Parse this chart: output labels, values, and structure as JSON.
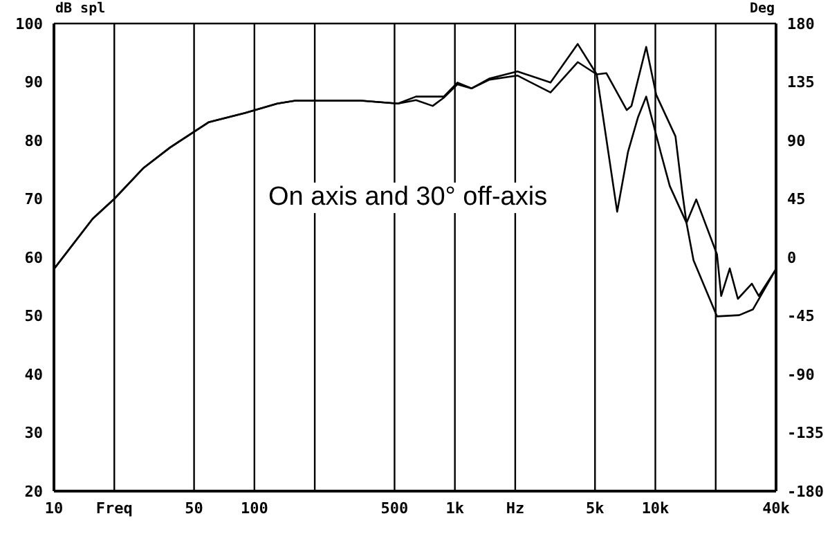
{
  "chart_data": {
    "type": "line",
    "ylabel": "dB spl",
    "y2label": "Deg",
    "annotations": [
      "On axis and 30° off-axis"
    ],
    "log": "x",
    "grid": true,
    "marker": "none",
    "line_style": "solid",
    "xlim": [
      10,
      40000
    ],
    "xticks": [
      10,
      {
        "value": 20,
        "label": "Freq"
      },
      50,
      100,
      {
        "value": 200,
        "label": null
      },
      500,
      {
        "value": 1000,
        "label": "1k"
      },
      {
        "value": 2000,
        "label": "Hz"
      },
      {
        "value": 5000,
        "label": "5k"
      },
      {
        "value": 10000,
        "label": "10k"
      },
      {
        "value": 20000,
        "label": null
      },
      {
        "value": 40000,
        "label": "40k"
      }
    ],
    "ylim": [
      20,
      100
    ],
    "yticks": [
      20,
      30,
      40,
      50,
      60,
      70,
      80,
      90,
      100
    ],
    "y2lim": [
      -180,
      180
    ],
    "y2ticks": [
      -180,
      -135,
      -90,
      -45,
      0,
      45,
      90,
      135,
      180
    ],
    "series": [
      {
        "color": "#000000",
        "x": [
          10,
          15.6,
          20,
          28,
          38,
          59,
          90,
          130,
          160,
          340,
          520,
          640,
          775,
          880,
          1030,
          1210,
          1490,
          2050,
          3000,
          4100,
          5100,
          6450,
          7300,
          8200,
          9000,
          10700,
          11800,
          14300,
          15500,
          20300,
          26200,
          30700,
          40000
        ],
        "values": [
          58,
          66.6,
          70,
          75.3,
          78.8,
          83.1,
          84.7,
          86.3,
          86.8,
          86.8,
          86.3,
          86.9,
          85.9,
          87.3,
          89.6,
          88.9,
          90.4,
          91.1,
          88.2,
          93.4,
          91.3,
          67.8,
          78,
          84,
          87.5,
          77.6,
          72.2,
          65.9,
          59.5,
          49.9,
          50.1,
          51.1,
          58
        ]
      },
      {
        "color": "#000000",
        "x": [
          10,
          15.6,
          20,
          28,
          38,
          59,
          90,
          130,
          160,
          340,
          520,
          640,
          775,
          880,
          1030,
          1210,
          1490,
          2050,
          3000,
          4100,
          5100,
          5700,
          7200,
          7600,
          9000,
          10100,
          12600,
          13600,
          14300,
          16000,
          20300,
          21300,
          23500,
          25800,
          30300,
          32800,
          40000
        ],
        "values": [
          58,
          66.6,
          70,
          75.3,
          78.8,
          83.1,
          84.7,
          86.3,
          86.8,
          86.8,
          86.3,
          87.5,
          87.5,
          87.5,
          89.9,
          88.9,
          90.6,
          91.8,
          89.9,
          96.5,
          91.3,
          91.5,
          85.2,
          85.9,
          96,
          87.8,
          80.7,
          71.3,
          65.9,
          69.9,
          60.5,
          53.4,
          58.1,
          52.9,
          55.5,
          53.4,
          58
        ]
      }
    ]
  }
}
